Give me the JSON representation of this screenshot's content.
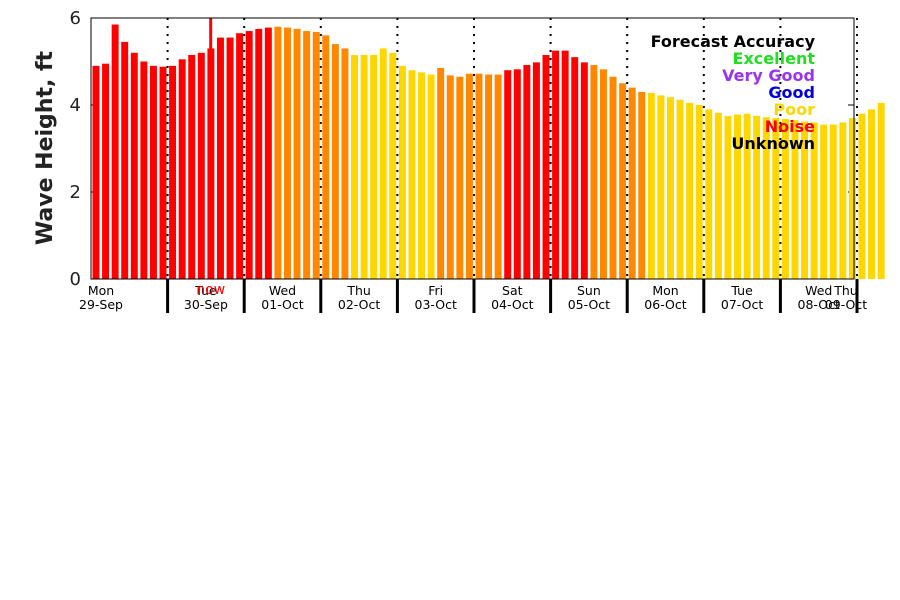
{
  "chart_data": {
    "type": "bar",
    "ylabel": "Wave Height, ft",
    "ylim": [
      0,
      6
    ],
    "yticks": [
      0,
      2,
      4,
      6
    ],
    "days": [
      {
        "weekday": "Mon",
        "date": "29-Sep"
      },
      {
        "weekday": "Tue",
        "date": "30-Sep"
      },
      {
        "weekday": "Wed",
        "date": "01-Oct"
      },
      {
        "weekday": "Thu",
        "date": "02-Oct"
      },
      {
        "weekday": "Fri",
        "date": "03-Oct"
      },
      {
        "weekday": "Sat",
        "date": "04-Oct"
      },
      {
        "weekday": "Sun",
        "date": "05-Oct"
      },
      {
        "weekday": "Mon",
        "date": "06-Oct"
      },
      {
        "weekday": "Tue",
        "date": "07-Oct"
      },
      {
        "weekday": "Wed",
        "date": "08-Oct"
      },
      {
        "weekday": "Thu",
        "date": "09-Oct"
      }
    ],
    "bars_per_day": 8,
    "values": [
      4.9,
      4.95,
      5.85,
      5.45,
      5.2,
      5.0,
      4.9,
      4.88,
      4.9,
      5.05,
      5.15,
      5.2,
      5.3,
      5.55,
      5.55,
      5.65,
      5.7,
      5.75,
      5.78,
      5.8,
      5.78,
      5.75,
      5.7,
      5.68,
      5.6,
      5.4,
      5.3,
      5.15,
      5.15,
      5.15,
      5.3,
      5.2,
      4.9,
      4.8,
      4.75,
      4.7,
      4.85,
      4.68,
      4.65,
      4.72,
      4.72,
      4.7,
      4.7,
      4.8,
      4.82,
      4.92,
      4.98,
      5.15,
      5.25,
      5.25,
      5.1,
      4.98,
      4.92,
      4.82,
      4.65,
      4.5,
      4.4,
      4.3,
      4.28,
      4.22,
      4.18,
      4.12,
      4.05,
      4.0,
      3.9,
      3.82,
      3.75,
      3.78,
      3.8,
      3.75,
      3.72,
      3.7,
      3.68,
      3.65,
      3.62,
      3.6,
      3.55,
      3.55,
      3.6,
      3.7,
      3.8,
      3.9,
      4.05
    ],
    "accuracy": [
      "noise",
      "noise",
      "noise",
      "noise",
      "noise",
      "noise",
      "noise",
      "noise",
      "noise",
      "noise",
      "noise",
      "noise",
      "noise",
      "noise",
      "noise",
      "noise",
      "noise",
      "noise",
      "noise",
      "orange",
      "orange",
      "orange",
      "orange",
      "orange",
      "orange",
      "orange",
      "orange",
      "poor",
      "poor",
      "poor",
      "poor",
      "poor",
      "poor",
      "poor",
      "poor",
      "poor",
      "orange",
      "orange",
      "orange",
      "orange",
      "orange",
      "orange",
      "orange",
      "noise",
      "noise",
      "noise",
      "noise",
      "noise",
      "noise",
      "noise",
      "noise",
      "noise",
      "orange",
      "orange",
      "orange",
      "orange",
      "orange",
      "orange",
      "poor",
      "poor",
      "poor",
      "poor",
      "poor",
      "poor",
      "poor",
      "poor",
      "poor",
      "poor",
      "poor",
      "poor",
      "poor",
      "poor",
      "poor",
      "poor",
      "poor",
      "poor",
      "poor",
      "poor",
      "poor",
      "poor",
      "poor",
      "poor",
      "poor"
    ],
    "now": {
      "label": "now",
      "bar_index": 12,
      "value": 6.0
    },
    "legend": {
      "title": "Forecast Accuracy",
      "entries": [
        {
          "label": "Excellent",
          "color": "#22dd22"
        },
        {
          "label": "Very Good",
          "color": "#9933ee"
        },
        {
          "label": "Good",
          "color": "#0000dd"
        },
        {
          "label": "Poor",
          "color": "#ffd700"
        },
        {
          "label": "Noise",
          "color": "#ff0000"
        },
        {
          "label": "Unknown",
          "color": "#000000"
        }
      ]
    },
    "colors": {
      "noise": "#ff0000",
      "orange": "#ff8800",
      "poor": "#ffd700",
      "now": "#ff0000"
    }
  }
}
